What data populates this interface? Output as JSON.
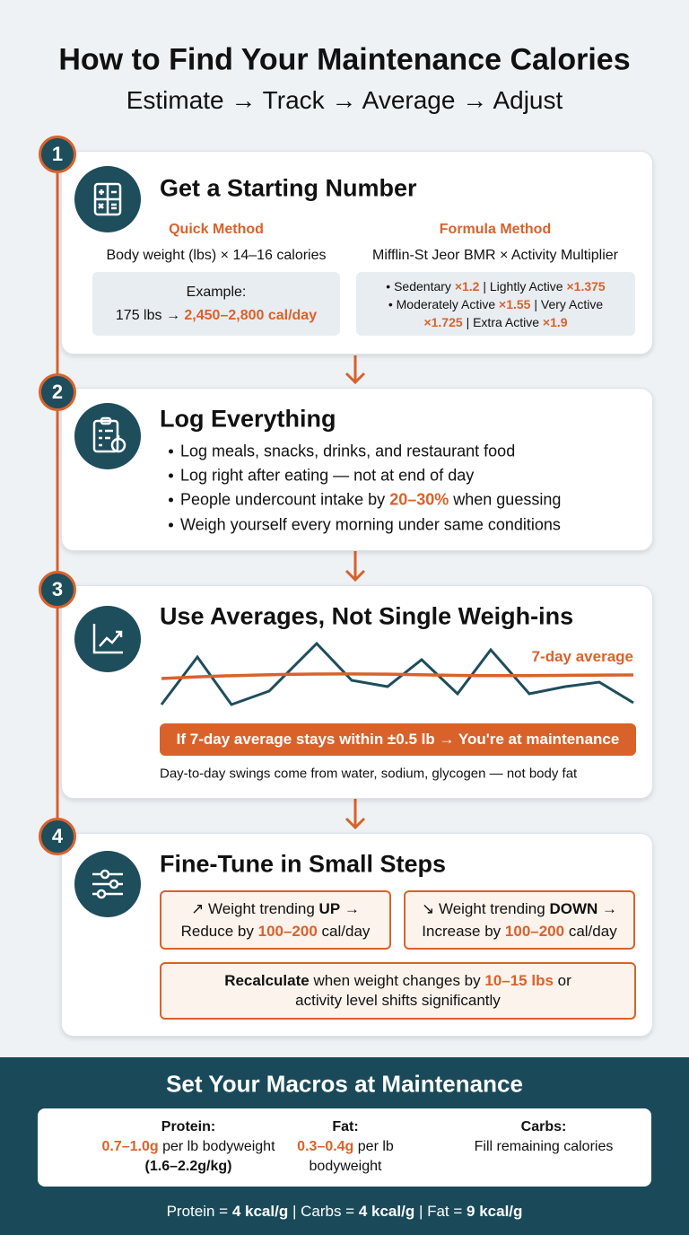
{
  "header": {
    "title": "How to Find Your Maintenance Calories",
    "subtitle": "Estimate → Track → Average → Adjust"
  },
  "steps": [
    {
      "number": "1",
      "title": "Get a Starting Number",
      "quick": {
        "heading": "Quick Method",
        "text": "Body weight (lbs) × 14–16 calories",
        "example": [
          "Example:",
          "175 lbs →",
          "2,450–2,800 cal/day"
        ]
      },
      "formula": {
        "heading": "Formula Method",
        "text": "Mifflin-St Jeor BMR × Activity Multiplier",
        "lines": [
          [
            "• Sedentary",
            "×1.2",
            "| Lightly Active",
            "×1.375"
          ],
          [
            "• Moderately Active",
            "×1.55",
            "| Very Active"
          ],
          [
            "×1.725",
            "| Extra Active",
            "×1.9"
          ]
        ]
      }
    },
    {
      "number": "2",
      "title": "Log Everything",
      "bullets": [
        [
          "Log meals, snacks, drinks, and restaurant food"
        ],
        [
          "Log right after eating — not at end of day"
        ],
        [
          "People undercount intake by",
          "20–30%",
          "when guessing"
        ],
        [
          "Weigh yourself every morning under same conditions"
        ]
      ]
    },
    {
      "number": "3",
      "title": "Use Averages, Not Single Weigh-ins",
      "legend": "7-day average",
      "callout": "If 7-day average stays within ±0.5 lb → You're at maintenance",
      "note": "Day-to-day swings come from water, sodium, glycogen — not body fat"
    },
    {
      "number": "4",
      "title": "Fine-Tune in Small Steps",
      "up": [
        "↗ Weight trending",
        "UP",
        "→",
        "Reduce by",
        "100–200",
        "cal/day"
      ],
      "down": [
        "↘ Weight trending",
        "DOWN",
        "→",
        "Increase by",
        "100–200",
        "cal/day"
      ],
      "recalc": [
        "Recalculate",
        "when weight changes by",
        "10–15 lbs",
        "or",
        "activity level shifts significantly"
      ]
    }
  ],
  "macros": {
    "title": "Set Your Macros at Maintenance",
    "protein": [
      "Protein:",
      "0.7–1.0g",
      "per lb bodyweight",
      "(1.6–2.2g/kg)"
    ],
    "fat": [
      "Fat:",
      "0.3–0.4g",
      "per lb",
      "bodyweight"
    ],
    "carbs": [
      "Carbs:",
      "Fill remaining calories"
    ],
    "footer": [
      "Protein =",
      "4 kcal/g",
      "| Carbs =",
      "4 kcal/g",
      "| Fat =",
      "9 kcal/g"
    ]
  }
}
